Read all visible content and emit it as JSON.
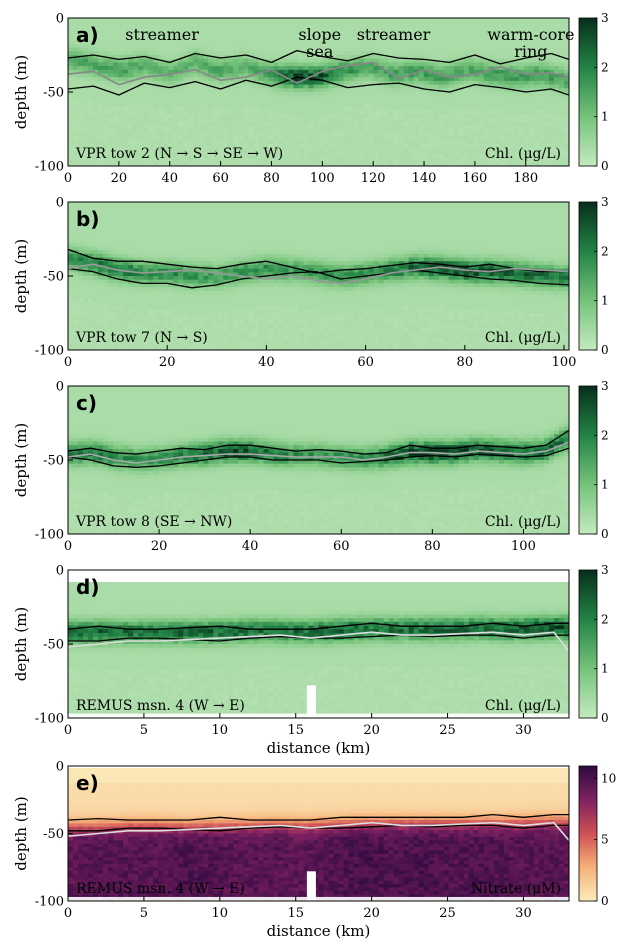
{
  "chart_data": [
    {
      "type": "heatmap",
      "panel_label": "a)",
      "tow_label": "VPR tow 2 (N → S → SE → W)",
      "variable_label": "Chl. (μg/L)",
      "ylabel": "depth (m)",
      "xlabel": "",
      "xlim": [
        0,
        197
      ],
      "ylim": [
        -100,
        0
      ],
      "xticks": [
        0,
        20,
        40,
        60,
        80,
        100,
        120,
        140,
        160,
        180
      ],
      "yticks": [
        0,
        -50,
        -100
      ],
      "colorbar": {
        "range": [
          0,
          3
        ],
        "ticks": [
          0,
          1,
          2,
          3
        ],
        "colormap": "greens"
      },
      "annotations": [
        {
          "text": "streamer",
          "x": 37
        },
        {
          "text": "slope",
          "x": 99
        },
        {
          "text": "sea",
          "x": 99
        },
        {
          "text": "streamer",
          "x": 128
        },
        {
          "text": "warm-core",
          "x": 182
        },
        {
          "text": "ring",
          "x": 182
        }
      ],
      "series": [
        {
          "color": "#000000",
          "x": [
            0,
            10,
            20,
            30,
            40,
            50,
            60,
            70,
            80,
            90,
            100,
            110,
            120,
            130,
            140,
            150,
            160,
            170,
            180,
            190,
            197
          ],
          "y": [
            -27,
            -25,
            -28,
            -26,
            -30,
            -24,
            -27,
            -25,
            -30,
            -22,
            -26,
            -29,
            -24,
            -27,
            -28,
            -30,
            -25,
            -31,
            -27,
            -24,
            -28
          ]
        },
        {
          "color": "#000000",
          "x": [
            0,
            10,
            20,
            30,
            40,
            50,
            60,
            70,
            80,
            90,
            100,
            110,
            120,
            130,
            140,
            150,
            160,
            170,
            180,
            190,
            197
          ],
          "y": [
            -48,
            -46,
            -52,
            -44,
            -47,
            -43,
            -48,
            -42,
            -46,
            -40,
            -42,
            -47,
            -45,
            -44,
            -48,
            -50,
            -45,
            -47,
            -50,
            -48,
            -52
          ]
        },
        {
          "color": "#888888",
          "x": [
            0,
            10,
            20,
            30,
            40,
            50,
            60,
            70,
            80,
            90,
            100,
            110,
            120,
            130,
            140,
            150,
            160,
            170,
            180,
            190,
            197
          ],
          "y": [
            -38,
            -36,
            -45,
            -40,
            -38,
            -35,
            -42,
            -40,
            -35,
            -44,
            -36,
            -32,
            -30,
            -41,
            -35,
            -40,
            -38,
            -33,
            -38,
            -37,
            -40
          ]
        }
      ],
      "field": {
        "base_depth": [
          -28,
          -32,
          -35,
          -32,
          -38,
          -30,
          -36,
          -33,
          -38,
          -40,
          -40,
          -36,
          -33,
          -38,
          -36,
          -40,
          -35,
          -38,
          -40,
          -38,
          -42
        ],
        "intensity": [
          1.3,
          1.2,
          1.4,
          1.1,
          1.0,
          1.1,
          1.2,
          1.0,
          1.4,
          2.6,
          2.4,
          1.6,
          1.2,
          1.3,
          1.4,
          1.3,
          1.2,
          1.4,
          1.5,
          1.4,
          1.3
        ]
      }
    },
    {
      "type": "heatmap",
      "panel_label": "b)",
      "tow_label": "VPR tow 7 (N → S)",
      "variable_label": "Chl. (μg/L)",
      "ylabel": "depth (m)",
      "xlabel": "",
      "xlim": [
        0,
        101
      ],
      "ylim": [
        -100,
        0
      ],
      "xticks": [
        0,
        20,
        40,
        60,
        80,
        100
      ],
      "yticks": [
        0,
        -50,
        -100
      ],
      "colorbar": {
        "range": [
          0,
          3
        ],
        "ticks": [
          0,
          1,
          2,
          3
        ],
        "colormap": "greens"
      },
      "annotations": [],
      "series": [
        {
          "color": "#000000",
          "x": [
            0,
            5,
            10,
            15,
            20,
            25,
            30,
            35,
            40,
            45,
            50,
            55,
            60,
            65,
            70,
            75,
            80,
            85,
            90,
            95,
            101
          ],
          "y": [
            -32,
            -38,
            -40,
            -40,
            -42,
            -44,
            -45,
            -42,
            -40,
            -44,
            -48,
            -46,
            -45,
            -43,
            -41,
            -42,
            -44,
            -42,
            -45,
            -47,
            -47
          ]
        },
        {
          "color": "#000000",
          "x": [
            0,
            5,
            10,
            15,
            20,
            25,
            30,
            35,
            40,
            45,
            50,
            55,
            60,
            65,
            70,
            75,
            80,
            85,
            90,
            95,
            101
          ],
          "y": [
            -45,
            -47,
            -52,
            -55,
            -55,
            -58,
            -56,
            -52,
            -50,
            -48,
            -47,
            -52,
            -50,
            -48,
            -46,
            -48,
            -50,
            -52,
            -53,
            -55,
            -56
          ]
        },
        {
          "color": "#999999",
          "x": [
            0,
            5,
            10,
            15,
            20,
            25,
            30,
            35,
            40,
            45,
            50,
            55,
            60,
            65,
            70,
            75,
            80,
            85,
            90,
            95,
            101
          ],
          "y": [
            -45,
            -42,
            -46,
            -48,
            -47,
            -46,
            -48,
            -50,
            -52,
            -50,
            -53,
            -55,
            -52,
            -48,
            -46,
            -44,
            -46,
            -47,
            -45,
            -46,
            -47
          ]
        }
      ],
      "field": {
        "base_depth": [
          -38,
          -42,
          -46,
          -48,
          -48,
          -50,
          -50,
          -47,
          -45,
          -46,
          -48,
          -50,
          -48,
          -46,
          -44,
          -45,
          -47,
          -47,
          -48,
          -50,
          -51
        ],
        "intensity": [
          1.6,
          1.9,
          2.0,
          1.7,
          1.6,
          1.5,
          1.4,
          1.5,
          1.6,
          1.4,
          1.5,
          1.5,
          1.6,
          1.8,
          2.2,
          2.4,
          2.5,
          2.4,
          2.2,
          2.0,
          1.8
        ]
      }
    },
    {
      "type": "heatmap",
      "panel_label": "c)",
      "tow_label": "VPR tow 8 (SE → NW)",
      "variable_label": "Chl. (μg/L)",
      "ylabel": "depth (m)",
      "xlabel": "",
      "xlim": [
        0,
        110
      ],
      "ylim": [
        -100,
        0
      ],
      "xticks": [
        0,
        20,
        40,
        60,
        80,
        100
      ],
      "yticks": [
        0,
        -50,
        -100
      ],
      "colorbar": {
        "range": [
          0,
          3
        ],
        "ticks": [
          0,
          1,
          2,
          3
        ],
        "colormap": "greens"
      },
      "annotations": [],
      "series": [
        {
          "color": "#000000",
          "x": [
            0,
            5,
            10,
            15,
            20,
            25,
            30,
            35,
            40,
            45,
            50,
            55,
            60,
            65,
            70,
            75,
            80,
            85,
            90,
            95,
            100,
            105,
            110
          ],
          "y": [
            -44,
            -42,
            -45,
            -46,
            -44,
            -42,
            -43,
            -40,
            -40,
            -42,
            -44,
            -43,
            -44,
            -46,
            -45,
            -40,
            -42,
            -42,
            -40,
            -41,
            -42,
            -40,
            -30
          ]
        },
        {
          "color": "#000000",
          "x": [
            0,
            5,
            10,
            15,
            20,
            25,
            30,
            35,
            40,
            45,
            50,
            55,
            60,
            65,
            70,
            75,
            80,
            85,
            90,
            95,
            100,
            105,
            110
          ],
          "y": [
            -48,
            -50,
            -54,
            -55,
            -54,
            -52,
            -50,
            -48,
            -48,
            -50,
            -50,
            -50,
            -52,
            -51,
            -50,
            -48,
            -47,
            -48,
            -46,
            -47,
            -48,
            -47,
            -42
          ]
        },
        {
          "color": "#aaaaaa",
          "x": [
            0,
            5,
            10,
            15,
            20,
            25,
            30,
            35,
            40,
            45,
            50,
            55,
            60,
            65,
            70,
            75,
            80,
            85,
            90,
            95,
            100,
            105,
            110
          ],
          "y": [
            -48,
            -46,
            -50,
            -52,
            -50,
            -48,
            -47,
            -46,
            -46,
            -47,
            -48,
            -48,
            -48,
            -50,
            -48,
            -45,
            -45,
            -46,
            -44,
            -45,
            -46,
            -44,
            -38
          ]
        }
      ],
      "field": {
        "base_depth": [
          -46,
          -45,
          -48,
          -50,
          -49,
          -47,
          -46,
          -44,
          -44,
          -46,
          -47,
          -47,
          -48,
          -49,
          -48,
          -45,
          -45,
          -45,
          -43,
          -44,
          -45,
          -44,
          -36
        ],
        "intensity": [
          1.8,
          2.0,
          1.8,
          1.6,
          1.6,
          1.8,
          2.2,
          2.4,
          2.3,
          1.9,
          1.6,
          1.5,
          1.5,
          1.6,
          2.0,
          2.6,
          2.7,
          2.5,
          2.4,
          2.3,
          2.2,
          2.1,
          2.0
        ]
      }
    },
    {
      "type": "heatmap",
      "panel_label": "d)",
      "tow_label": "REMUS msn. 4 (W → E)",
      "variable_label": "Chl. (μg/L)",
      "ylabel": "depth (m)",
      "xlabel": "distance (km)",
      "xlim": [
        0,
        33
      ],
      "ylim": [
        -100,
        0
      ],
      "xticks": [
        0,
        5,
        10,
        15,
        20,
        25,
        30
      ],
      "yticks": [
        0,
        -50,
        -100
      ],
      "colorbar": {
        "range": [
          0,
          3
        ],
        "ticks": [
          0,
          1,
          2,
          3
        ],
        "colormap": "greens"
      },
      "annotations": [],
      "series": [
        {
          "color": "#000000",
          "x": [
            0,
            2,
            4,
            6,
            8,
            10,
            12,
            14,
            16,
            18,
            20,
            22,
            24,
            26,
            28,
            30,
            32,
            33
          ],
          "y": [
            -40,
            -38,
            -40,
            -40,
            -39,
            -38,
            -40,
            -40,
            -40,
            -38,
            -36,
            -38,
            -38,
            -38,
            -36,
            -38,
            -36,
            -36
          ]
        },
        {
          "color": "#000000",
          "x": [
            0,
            2,
            4,
            6,
            8,
            10,
            12,
            14,
            16,
            18,
            20,
            22,
            24,
            26,
            28,
            30,
            32,
            33
          ],
          "y": [
            -48,
            -48,
            -46,
            -46,
            -47,
            -48,
            -46,
            -45,
            -46,
            -46,
            -45,
            -44,
            -45,
            -44,
            -44,
            -46,
            -44,
            -44
          ]
        },
        {
          "color": "#dddddd",
          "x": [
            0,
            2,
            4,
            6,
            8,
            10,
            12,
            14,
            16,
            18,
            20,
            22,
            24,
            26,
            28,
            30,
            32,
            33
          ],
          "y": [
            -52,
            -50,
            -48,
            -48,
            -47,
            -46,
            -45,
            -44,
            -46,
            -44,
            -42,
            -44,
            -44,
            -43,
            -42,
            -44,
            -42,
            -55
          ]
        }
      ],
      "field": {
        "base_depth": [
          -42,
          -42,
          -42,
          -42,
          -42,
          -42,
          -41,
          -41,
          -42,
          -41,
          -40,
          -40,
          -40,
          -40,
          -39,
          -40,
          -39,
          -39
        ],
        "intensity": [
          2.1,
          2.2,
          2.1,
          2.0,
          2.2,
          2.2,
          2.1,
          2.0,
          2.1,
          2.3,
          2.1,
          2.0,
          2.1,
          2.1,
          2.2,
          2.3,
          2.5,
          2.6
        ]
      }
    },
    {
      "type": "heatmap",
      "panel_label": "e)",
      "tow_label": "REMUS msn. 4 (W → E)",
      "variable_label": "Nitrate (μM)",
      "ylabel": "depth (m)",
      "xlabel": "distance (km)",
      "xlim": [
        0,
        33
      ],
      "ylim": [
        -100,
        0
      ],
      "xticks": [
        0,
        5,
        10,
        15,
        20,
        25,
        30
      ],
      "yticks": [
        0,
        -50,
        -100
      ],
      "colorbar": {
        "range": [
          0,
          11
        ],
        "ticks": [
          0,
          5,
          10
        ],
        "colormap": "magma-r"
      },
      "annotations": [],
      "series": [
        {
          "color": "#000000",
          "x": [
            0,
            2,
            4,
            6,
            8,
            10,
            12,
            14,
            16,
            18,
            20,
            22,
            24,
            26,
            28,
            30,
            32,
            33
          ],
          "y": [
            -40,
            -39,
            -40,
            -40,
            -40,
            -38,
            -40,
            -40,
            -40,
            -38,
            -38,
            -38,
            -38,
            -38,
            -36,
            -38,
            -36,
            -36
          ]
        },
        {
          "color": "#000000",
          "x": [
            0,
            2,
            4,
            6,
            8,
            10,
            12,
            14,
            16,
            18,
            20,
            22,
            24,
            26,
            28,
            30,
            32,
            33
          ],
          "y": [
            -48,
            -48,
            -46,
            -46,
            -47,
            -48,
            -46,
            -45,
            -46,
            -46,
            -45,
            -44,
            -45,
            -44,
            -44,
            -46,
            -44,
            -44
          ]
        },
        {
          "color": "#dddddd",
          "x": [
            0,
            2,
            4,
            6,
            8,
            10,
            12,
            14,
            16,
            18,
            20,
            22,
            24,
            26,
            28,
            30,
            32,
            33
          ],
          "y": [
            -52,
            -50,
            -48,
            -48,
            -47,
            -46,
            -45,
            -44,
            -46,
            -44,
            -42,
            -44,
            -44,
            -43,
            -42,
            -44,
            -42,
            -55
          ]
        }
      ],
      "field": {
        "base_depth": [
          -45,
          -45,
          -44,
          -44,
          -45,
          -44,
          -44,
          -43,
          -44,
          -43,
          -42,
          -42,
          -42,
          -42,
          -42,
          -42,
          -41,
          -41
        ],
        "intensity": [
          9.5,
          9.8,
          9.6,
          9.7,
          10.0,
          9.8,
          9.5,
          9.6,
          9.4,
          9.8,
          10.2,
          9.9,
          10.1,
          9.8,
          10.0,
          9.7,
          9.6,
          9.5
        ]
      }
    }
  ]
}
